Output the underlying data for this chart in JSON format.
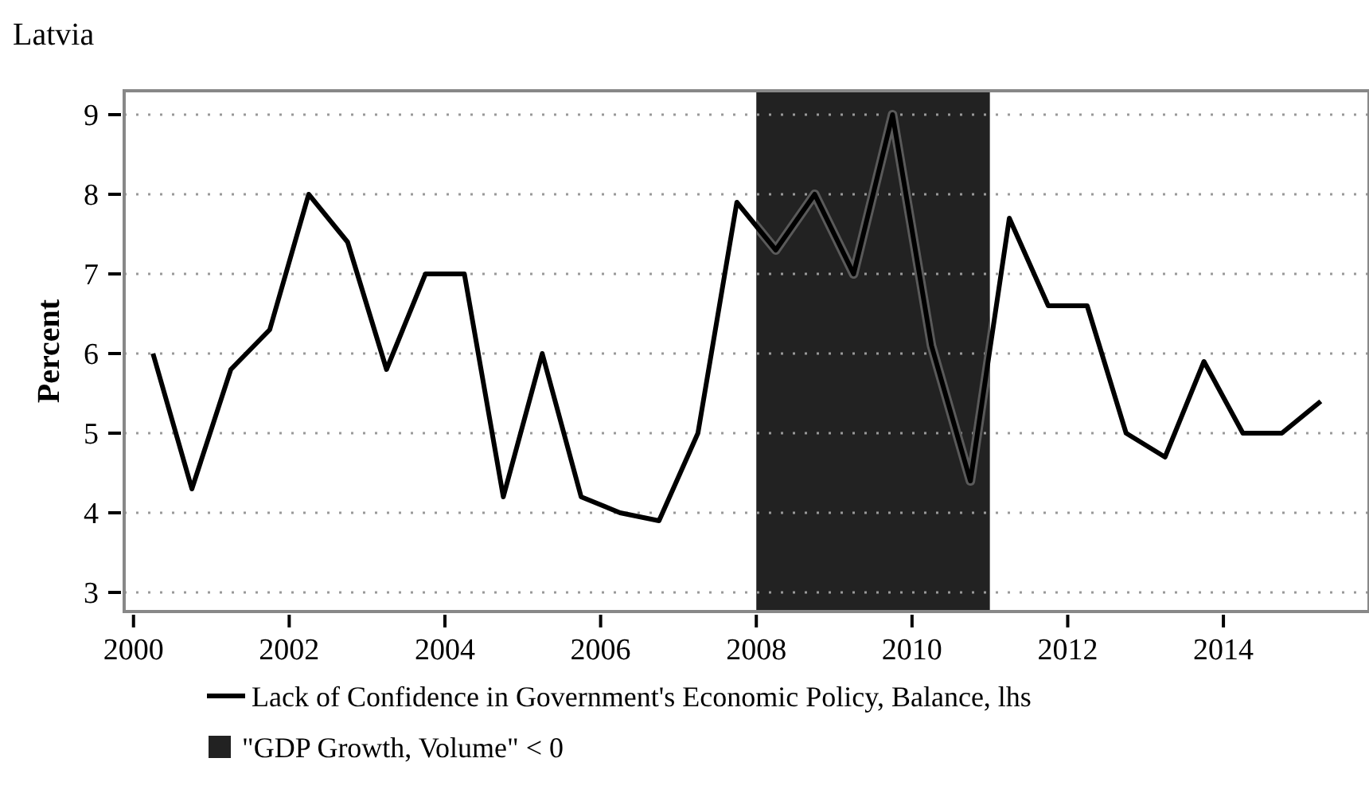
{
  "chart_data": {
    "type": "line",
    "title": "Latvia",
    "ylabel": "Percent",
    "x": [
      2000.25,
      2000.75,
      2001.25,
      2001.75,
      2002.25,
      2002.75,
      2003.25,
      2003.75,
      2004.25,
      2004.75,
      2005.25,
      2005.75,
      2006.25,
      2006.75,
      2007.25,
      2007.75,
      2008.25,
      2008.75,
      2009.25,
      2009.75,
      2010.25,
      2010.75,
      2011.25,
      2011.75,
      2012.25,
      2012.75,
      2013.25,
      2013.75,
      2014.25,
      2014.75,
      2015.25
    ],
    "series": [
      {
        "name": "Lack of Confidence in Government's Economic Policy, Balance, lhs",
        "color": "#000000",
        "values": [
          6.0,
          4.3,
          5.8,
          6.3,
          8.0,
          7.4,
          5.8,
          7.0,
          7.0,
          4.2,
          6.0,
          4.2,
          4.0,
          3.9,
          5.0,
          7.9,
          7.3,
          8.0,
          7.0,
          9.0,
          6.1,
          4.4,
          7.7,
          6.6,
          6.6,
          5.0,
          4.7,
          5.9,
          5.0,
          5.0,
          5.4
        ]
      }
    ],
    "xlim": [
      1999.88,
      2015.87
    ],
    "xticks": [
      2000,
      2002,
      2004,
      2006,
      2008,
      2010,
      2012,
      2014
    ],
    "ylim": [
      2.76,
      9.3
    ],
    "yticks": [
      3,
      4,
      5,
      6,
      7,
      8,
      9
    ],
    "bands": [
      {
        "axis": "x",
        "from": 2008,
        "to": 2011,
        "label": "\"GDP Growth, Volume\" < 0",
        "color": "#222222"
      }
    ],
    "grid": "y",
    "legend": "bottom",
    "line_style": "solid",
    "marker": "none"
  }
}
